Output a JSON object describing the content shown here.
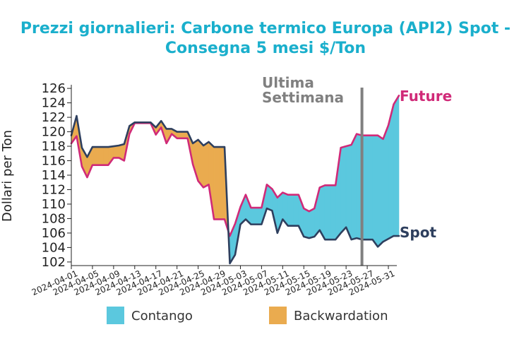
{
  "chart_data": {
    "type": "area",
    "title_line1": "Prezzi giornalieri: Carbone termico Europa (API2) Spot -",
    "title_line2": "Consegna 5 mesi $/Ton",
    "ylabel": "Dollari per Ton",
    "xlabel": "",
    "ylim": [
      101.5,
      126.5
    ],
    "yticks": [
      102,
      104,
      106,
      108,
      110,
      112,
      114,
      116,
      118,
      120,
      122,
      124,
      126
    ],
    "xtick_labels": [
      "2024-04-01",
      "2024-04-05",
      "2024-04-09",
      "2024-04-13",
      "2024-04-17",
      "2024-04-21",
      "2024-04-25",
      "2024-04-29",
      "2024-05-03",
      "2024-05-07",
      "2024-05-11",
      "2024-05-15",
      "2024-05-19",
      "2024-05-23",
      "2024-05-27",
      "2024-05-31"
    ],
    "x_start": "2024-04-01",
    "x_end": "2024-05-31",
    "series": [
      {
        "name": "Spot",
        "color": "#2e3f5e",
        "points": [
          [
            "2024-04-01",
            119.5
          ],
          [
            "2024-04-02",
            122.2
          ],
          [
            "2024-04-03",
            117.8
          ],
          [
            "2024-04-04",
            116.5
          ],
          [
            "2024-04-05",
            117.9
          ],
          [
            "2024-04-06",
            117.9
          ],
          [
            "2024-04-07",
            117.9
          ],
          [
            "2024-04-08",
            117.9
          ],
          [
            "2024-04-09",
            118.0
          ],
          [
            "2024-04-10",
            118.1
          ],
          [
            "2024-04-11",
            118.3
          ],
          [
            "2024-04-12",
            120.8
          ],
          [
            "2024-04-13",
            121.3
          ],
          [
            "2024-04-14",
            121.3
          ],
          [
            "2024-04-15",
            121.3
          ],
          [
            "2024-04-16",
            121.3
          ],
          [
            "2024-04-17",
            120.6
          ],
          [
            "2024-04-18",
            121.5
          ],
          [
            "2024-04-19",
            120.4
          ],
          [
            "2024-04-20",
            120.4
          ],
          [
            "2024-04-21",
            120.0
          ],
          [
            "2024-04-22",
            120.0
          ],
          [
            "2024-04-23",
            120.0
          ],
          [
            "2024-04-24",
            118.4
          ],
          [
            "2024-04-25",
            118.9
          ],
          [
            "2024-04-26",
            118.1
          ],
          [
            "2024-04-27",
            118.6
          ],
          [
            "2024-04-28",
            117.9
          ],
          [
            "2024-04-29",
            117.9
          ],
          [
            "2024-04-30",
            117.9
          ],
          [
            "2024-05-01",
            101.8
          ],
          [
            "2024-05-02",
            103.0
          ],
          [
            "2024-05-03",
            107.2
          ],
          [
            "2024-05-04",
            107.9
          ],
          [
            "2024-05-05",
            107.2
          ],
          [
            "2024-05-06",
            107.2
          ],
          [
            "2024-05-07",
            107.2
          ],
          [
            "2024-05-08",
            109.4
          ],
          [
            "2024-05-09",
            109.1
          ],
          [
            "2024-05-10",
            106.0
          ],
          [
            "2024-05-11",
            107.9
          ],
          [
            "2024-05-12",
            107.0
          ],
          [
            "2024-05-13",
            107.0
          ],
          [
            "2024-05-14",
            107.0
          ],
          [
            "2024-05-15",
            105.5
          ],
          [
            "2024-05-16",
            105.3
          ],
          [
            "2024-05-17",
            105.5
          ],
          [
            "2024-05-18",
            106.4
          ],
          [
            "2024-05-19",
            105.1
          ],
          [
            "2024-05-20",
            105.1
          ],
          [
            "2024-05-21",
            105.1
          ],
          [
            "2024-05-22",
            106.0
          ],
          [
            "2024-05-23",
            106.8
          ],
          [
            "2024-05-24",
            105.1
          ],
          [
            "2024-05-25",
            105.3
          ],
          [
            "2024-05-26",
            105.1
          ],
          [
            "2024-05-27",
            105.1
          ],
          [
            "2024-05-28",
            105.1
          ],
          [
            "2024-05-29",
            104.1
          ],
          [
            "2024-05-30",
            104.8
          ],
          [
            "2024-05-31",
            105.2
          ],
          [
            "2024-06-01",
            105.6
          ],
          [
            "2024-06-02",
            105.6
          ]
        ]
      },
      {
        "name": "Future",
        "color": "#d02a78",
        "points": [
          [
            "2024-04-01",
            118.4
          ],
          [
            "2024-04-02",
            119.4
          ],
          [
            "2024-04-03",
            115.2
          ],
          [
            "2024-04-04",
            113.7
          ],
          [
            "2024-04-05",
            115.4
          ],
          [
            "2024-04-06",
            115.4
          ],
          [
            "2024-04-07",
            115.4
          ],
          [
            "2024-04-08",
            115.4
          ],
          [
            "2024-04-09",
            116.4
          ],
          [
            "2024-04-10",
            116.4
          ],
          [
            "2024-04-11",
            116.0
          ],
          [
            "2024-04-12",
            119.7
          ],
          [
            "2024-04-13",
            121.2
          ],
          [
            "2024-04-14",
            121.2
          ],
          [
            "2024-04-15",
            121.2
          ],
          [
            "2024-04-16",
            121.2
          ],
          [
            "2024-04-17",
            119.6
          ],
          [
            "2024-04-18",
            120.6
          ],
          [
            "2024-04-19",
            118.4
          ],
          [
            "2024-04-20",
            119.7
          ],
          [
            "2024-04-21",
            119.1
          ],
          [
            "2024-04-22",
            119.1
          ],
          [
            "2024-04-23",
            119.1
          ],
          [
            "2024-04-24",
            115.5
          ],
          [
            "2024-04-25",
            113.2
          ],
          [
            "2024-04-26",
            112.3
          ],
          [
            "2024-04-27",
            112.7
          ],
          [
            "2024-04-28",
            107.9
          ],
          [
            "2024-04-29",
            107.9
          ],
          [
            "2024-04-30",
            107.9
          ],
          [
            "2024-05-01",
            105.6
          ],
          [
            "2024-05-02",
            107.3
          ],
          [
            "2024-05-03",
            109.6
          ],
          [
            "2024-05-04",
            111.3
          ],
          [
            "2024-05-05",
            109.5
          ],
          [
            "2024-05-06",
            109.5
          ],
          [
            "2024-05-07",
            109.5
          ],
          [
            "2024-05-08",
            112.7
          ],
          [
            "2024-05-09",
            112.1
          ],
          [
            "2024-05-10",
            110.9
          ],
          [
            "2024-05-11",
            111.6
          ],
          [
            "2024-05-12",
            111.3
          ],
          [
            "2024-05-13",
            111.3
          ],
          [
            "2024-05-14",
            111.3
          ],
          [
            "2024-05-15",
            109.4
          ],
          [
            "2024-05-16",
            109.0
          ],
          [
            "2024-05-17",
            109.4
          ],
          [
            "2024-05-18",
            112.3
          ],
          [
            "2024-05-19",
            112.6
          ],
          [
            "2024-05-20",
            112.6
          ],
          [
            "2024-05-21",
            112.6
          ],
          [
            "2024-05-22",
            117.8
          ],
          [
            "2024-05-23",
            118.0
          ],
          [
            "2024-05-24",
            118.2
          ],
          [
            "2024-05-25",
            119.7
          ],
          [
            "2024-05-26",
            119.5
          ],
          [
            "2024-05-27",
            119.5
          ],
          [
            "2024-05-28",
            119.5
          ],
          [
            "2024-05-29",
            119.5
          ],
          [
            "2024-05-30",
            119.0
          ],
          [
            "2024-05-31",
            120.9
          ],
          [
            "2024-06-01",
            123.8
          ],
          [
            "2024-06-02",
            125.0
          ]
        ]
      }
    ],
    "fills": {
      "contango": {
        "label": "Contango",
        "color": "#5bc8de"
      },
      "backwardation": {
        "label": "Backwardation",
        "color": "#eaab4f"
      }
    },
    "annotation": {
      "line1": "Ultima",
      "line2": "Settimana",
      "date": "2024-05-26",
      "color": "#808080"
    },
    "end_labels": {
      "future": "Future",
      "spot": "Spot"
    },
    "grid": false,
    "legend_position": "bottom"
  }
}
